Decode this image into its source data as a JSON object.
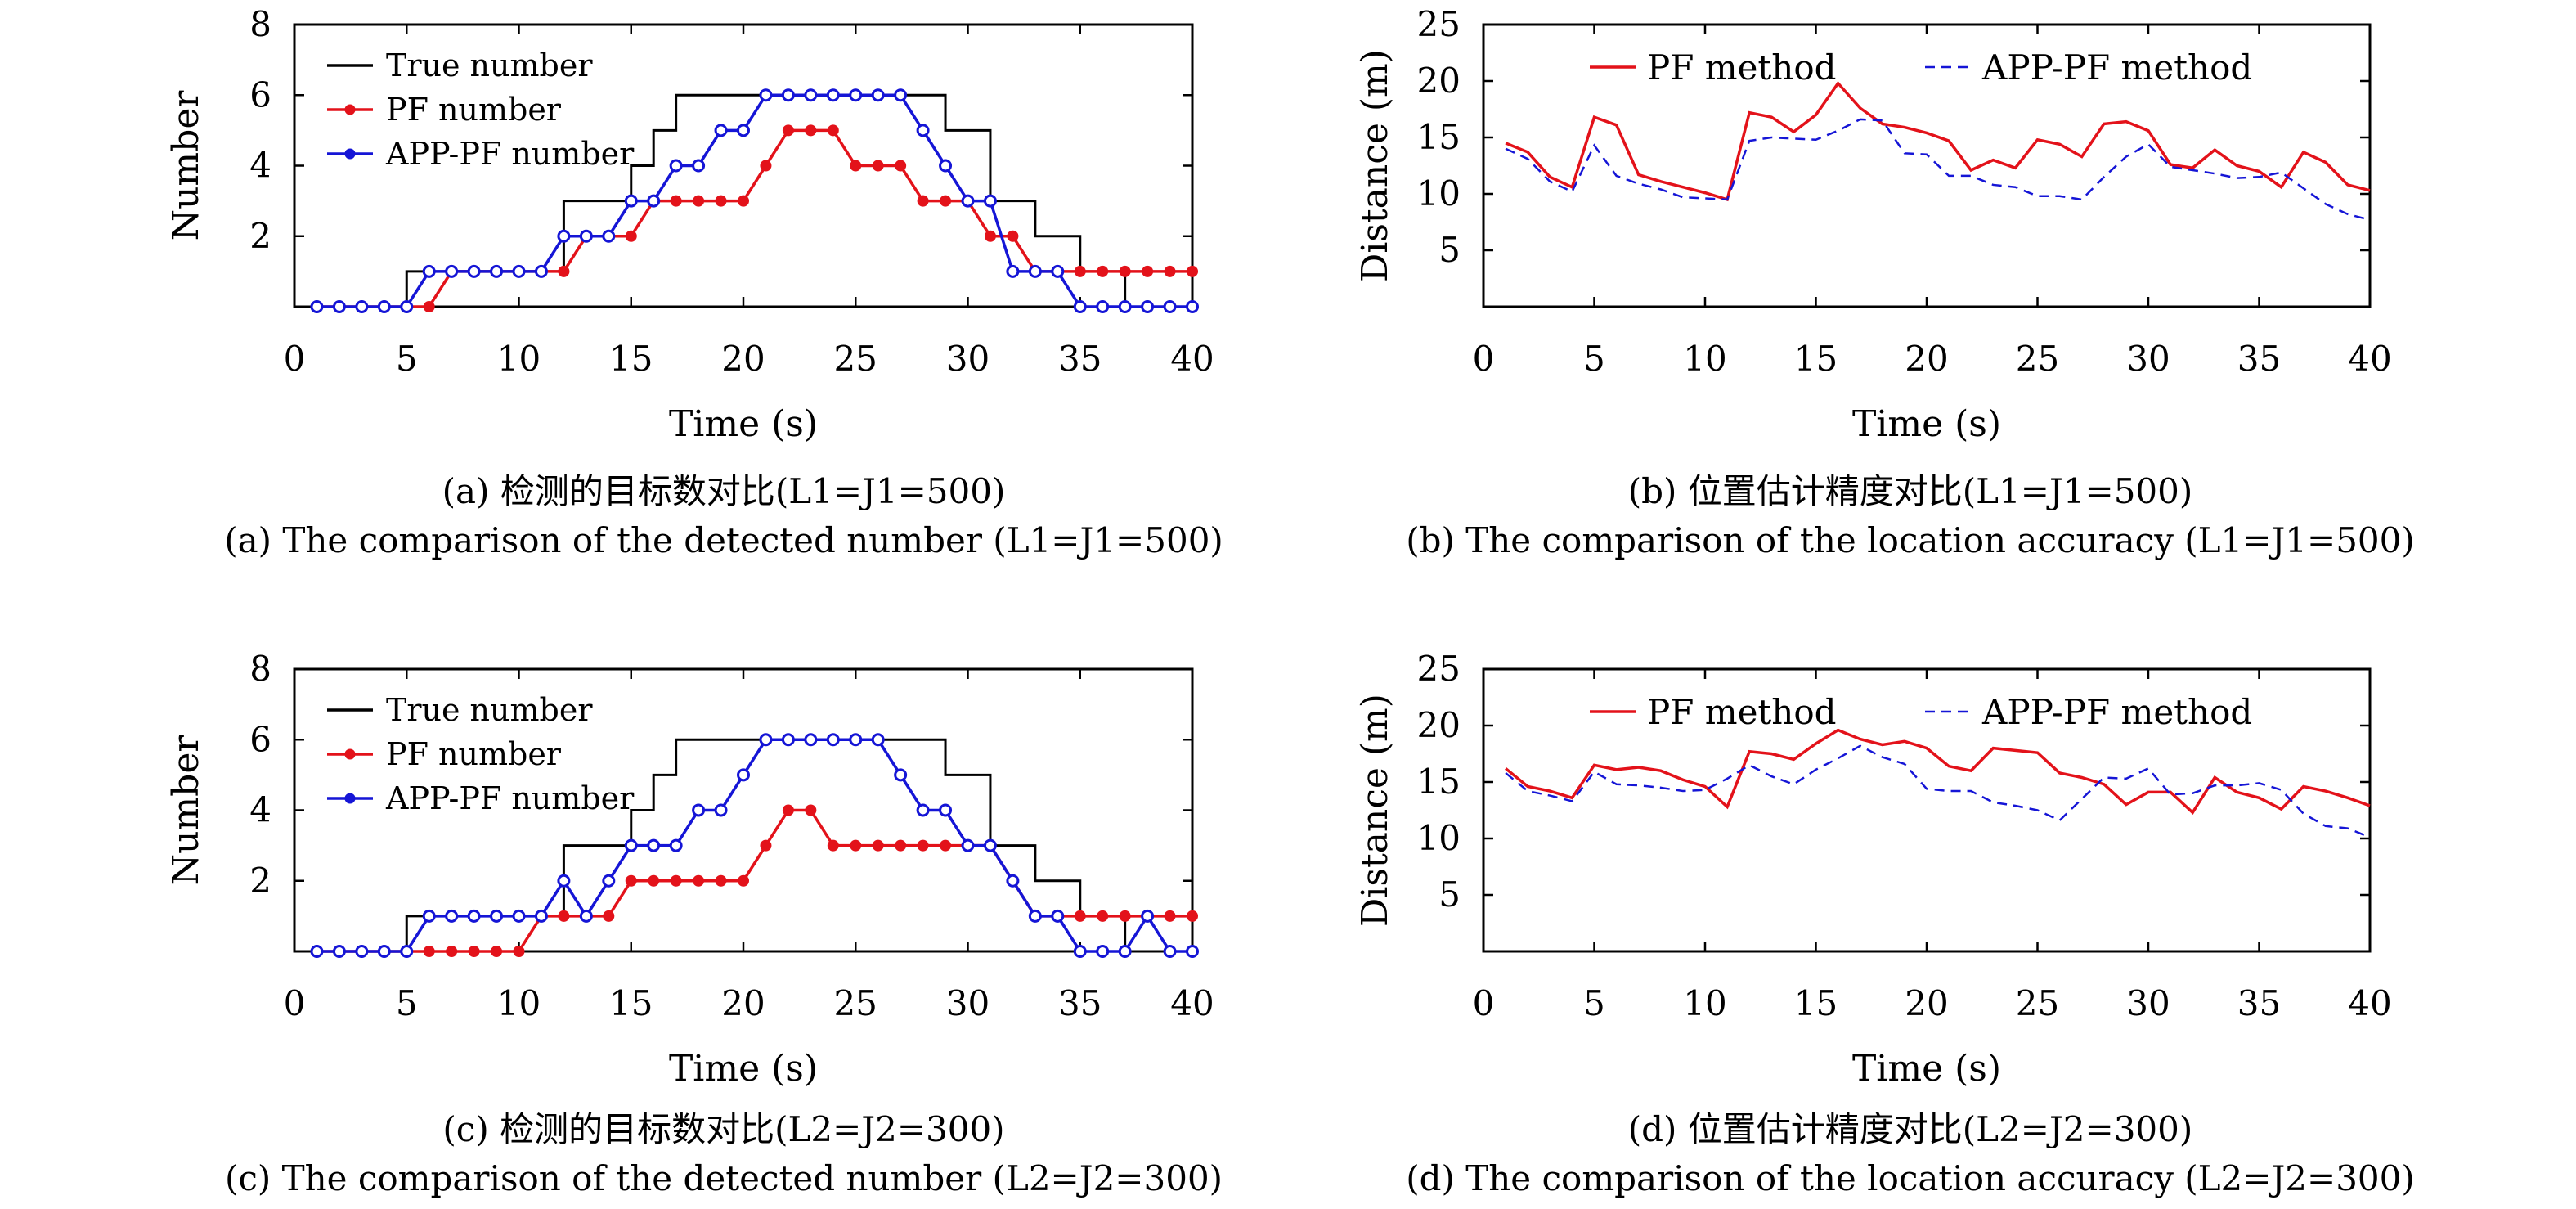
{
  "colors": {
    "true": "#000000",
    "pf": "#e3121a",
    "app": "#1515d6"
  },
  "chart_data": [
    {
      "type": "line",
      "panel": "a",
      "caption_cn": "(a) 检测的目标数对比(L1=J1=500)",
      "caption_en": "(a) The comparison of the detected number (L1=J1=500)",
      "xlabel": "Time (s)",
      "ylabel": "Number",
      "xlim": [
        0,
        40
      ],
      "ylim": [
        0,
        8
      ],
      "xticks": [
        0,
        5,
        10,
        15,
        20,
        25,
        30,
        35,
        40
      ],
      "yticks": [
        2,
        4,
        6,
        8
      ],
      "legend_position": "top-left",
      "x": [
        1,
        2,
        3,
        4,
        5,
        6,
        7,
        8,
        9,
        10,
        11,
        12,
        13,
        14,
        15,
        16,
        17,
        18,
        19,
        20,
        21,
        22,
        23,
        24,
        25,
        26,
        27,
        28,
        29,
        30,
        31,
        32,
        33,
        34,
        35,
        36,
        37,
        38,
        39,
        40
      ],
      "series": [
        {
          "name": "True number",
          "style": "step",
          "color": "#000000",
          "values": [
            0,
            0,
            0,
            0,
            1,
            1,
            1,
            1,
            1,
            1,
            1,
            3,
            3,
            3,
            4,
            5,
            6,
            6,
            6,
            6,
            6,
            6,
            6,
            6,
            6,
            6,
            6,
            6,
            5,
            5,
            3,
            3,
            2,
            2,
            1,
            1,
            0,
            0,
            0,
            0
          ]
        },
        {
          "name": "PF number",
          "style": "marker",
          "color": "#e3121a",
          "values": [
            0,
            0,
            0,
            0,
            0,
            0,
            1,
            1,
            1,
            1,
            1,
            1,
            2,
            2,
            2,
            3,
            3,
            3,
            3,
            3,
            4,
            5,
            5,
            5,
            4,
            4,
            4,
            3,
            3,
            3,
            2,
            2,
            1,
            1,
            1,
            1,
            1,
            1,
            1,
            1
          ]
        },
        {
          "name": "APP-PF number",
          "style": "marker",
          "color": "#1515d6",
          "values": [
            0,
            0,
            0,
            0,
            0,
            1,
            1,
            1,
            1,
            1,
            1,
            2,
            2,
            2,
            3,
            3,
            4,
            4,
            5,
            5,
            6,
            6,
            6,
            6,
            6,
            6,
            6,
            5,
            4,
            3,
            3,
            1,
            1,
            1,
            0,
            0,
            0,
            0,
            0,
            0
          ]
        }
      ]
    },
    {
      "type": "line",
      "panel": "b",
      "caption_cn": "(b) 位置估计精度对比(L1=J1=500)",
      "caption_en": "(b) The comparison of the location accuracy (L1=J1=500)",
      "xlabel": "Time (s)",
      "ylabel": "Distance (m)",
      "xlim": [
        0,
        40
      ],
      "ylim": [
        0,
        25
      ],
      "xticks": [
        0,
        5,
        10,
        15,
        20,
        25,
        30,
        35,
        40
      ],
      "yticks": [
        5,
        10,
        15,
        20,
        25
      ],
      "legend_position": "top",
      "x": [
        1,
        2,
        3,
        4,
        5,
        6,
        7,
        8,
        9,
        10,
        11,
        12,
        13,
        14,
        15,
        16,
        17,
        18,
        19,
        20,
        21,
        22,
        23,
        24,
        25,
        26,
        27,
        28,
        29,
        30,
        31,
        32,
        33,
        34,
        35,
        36,
        37,
        38,
        39,
        40
      ],
      "series": [
        {
          "name": "PF method",
          "style": "solid",
          "color": "#e3121a",
          "values": [
            14.5,
            13.7,
            11.5,
            10.6,
            16.8,
            16.1,
            11.7,
            11.1,
            10.6,
            10.1,
            9.5,
            17.2,
            16.8,
            15.5,
            17.0,
            19.8,
            17.6,
            16.2,
            15.9,
            15.4,
            14.7,
            12.1,
            13.0,
            12.3,
            14.8,
            14.4,
            13.3,
            16.2,
            16.4,
            15.6,
            12.6,
            12.3,
            13.9,
            12.5,
            12.0,
            10.6,
            13.7,
            12.8,
            10.8,
            10.3
          ]
        },
        {
          "name": "APP-PF method",
          "style": "dashed",
          "color": "#1515d6",
          "values": [
            14.0,
            13.1,
            11.1,
            10.2,
            14.3,
            11.6,
            10.9,
            10.4,
            9.7,
            9.6,
            9.5,
            14.7,
            15.0,
            14.9,
            14.8,
            15.6,
            16.6,
            16.5,
            13.6,
            13.5,
            11.6,
            11.6,
            10.8,
            10.6,
            9.8,
            9.8,
            9.5,
            11.5,
            13.3,
            14.4,
            12.4,
            12.1,
            11.8,
            11.4,
            11.5,
            11.9,
            10.5,
            9.1,
            8.2,
            7.7
          ]
        }
      ]
    },
    {
      "type": "line",
      "panel": "c",
      "caption_cn": "(c) 检测的目标数对比(L2=J2=300)",
      "caption_en": "(c) The comparison of the detected number (L2=J2=300)",
      "xlabel": "Time (s)",
      "ylabel": "Number",
      "xlim": [
        0,
        40
      ],
      "ylim": [
        0,
        8
      ],
      "xticks": [
        0,
        5,
        10,
        15,
        20,
        25,
        30,
        35,
        40
      ],
      "yticks": [
        2,
        4,
        6,
        8
      ],
      "legend_position": "top-left",
      "x": [
        1,
        2,
        3,
        4,
        5,
        6,
        7,
        8,
        9,
        10,
        11,
        12,
        13,
        14,
        15,
        16,
        17,
        18,
        19,
        20,
        21,
        22,
        23,
        24,
        25,
        26,
        27,
        28,
        29,
        30,
        31,
        32,
        33,
        34,
        35,
        36,
        37,
        38,
        39,
        40
      ],
      "series": [
        {
          "name": "True number",
          "style": "step",
          "color": "#000000",
          "values": [
            0,
            0,
            0,
            0,
            1,
            1,
            1,
            1,
            1,
            1,
            1,
            3,
            3,
            3,
            4,
            5,
            6,
            6,
            6,
            6,
            6,
            6,
            6,
            6,
            6,
            6,
            6,
            6,
            5,
            5,
            3,
            3,
            2,
            2,
            1,
            1,
            0,
            0,
            0,
            0
          ]
        },
        {
          "name": "PF number",
          "style": "marker",
          "color": "#e3121a",
          "values": [
            0,
            0,
            0,
            0,
            0,
            0,
            0,
            0,
            0,
            0,
            1,
            1,
            1,
            1,
            2,
            2,
            2,
            2,
            2,
            2,
            3,
            4,
            4,
            3,
            3,
            3,
            3,
            3,
            3,
            3,
            3,
            2,
            1,
            1,
            1,
            1,
            1,
            1,
            1,
            1
          ]
        },
        {
          "name": "APP-PF number",
          "style": "marker",
          "color": "#1515d6",
          "values": [
            0,
            0,
            0,
            0,
            0,
            1,
            1,
            1,
            1,
            1,
            1,
            2,
            1,
            2,
            3,
            3,
            3,
            4,
            4,
            5,
            6,
            6,
            6,
            6,
            6,
            6,
            5,
            4,
            4,
            3,
            3,
            2,
            1,
            1,
            0,
            0,
            0,
            1,
            0,
            0
          ]
        }
      ]
    },
    {
      "type": "line",
      "panel": "d",
      "caption_cn": "(d) 位置估计精度对比(L2=J2=300)",
      "caption_en": "(d) The comparison of the location accuracy (L2=J2=300)",
      "xlabel": "Time (s)",
      "ylabel": "Distance (m)",
      "xlim": [
        0,
        40
      ],
      "ylim": [
        0,
        25
      ],
      "xticks": [
        0,
        5,
        10,
        15,
        20,
        25,
        30,
        35,
        40
      ],
      "yticks": [
        5,
        10,
        15,
        20,
        25
      ],
      "legend_position": "top",
      "x": [
        1,
        2,
        3,
        4,
        5,
        6,
        7,
        8,
        9,
        10,
        11,
        12,
        13,
        14,
        15,
        16,
        17,
        18,
        19,
        20,
        21,
        22,
        23,
        24,
        25,
        26,
        27,
        28,
        29,
        30,
        31,
        32,
        33,
        34,
        35,
        36,
        37,
        38,
        39,
        40
      ],
      "series": [
        {
          "name": "PF method",
          "style": "solid",
          "color": "#e3121a",
          "values": [
            16.2,
            14.6,
            14.2,
            13.6,
            16.5,
            16.1,
            16.3,
            16.0,
            15.2,
            14.6,
            12.8,
            17.7,
            17.5,
            17.0,
            18.4,
            19.6,
            18.8,
            18.3,
            18.6,
            18.0,
            16.4,
            16.0,
            18.0,
            17.8,
            17.6,
            15.8,
            15.4,
            14.8,
            13.0,
            14.1,
            14.1,
            12.3,
            15.4,
            14.1,
            13.6,
            12.6,
            14.6,
            14.2,
            13.6,
            12.9
          ]
        },
        {
          "name": "APP-PF method",
          "style": "dashed",
          "color": "#1515d6",
          "values": [
            15.8,
            14.2,
            13.8,
            13.3,
            15.9,
            14.8,
            14.7,
            14.5,
            14.2,
            14.3,
            15.3,
            16.5,
            15.5,
            14.8,
            16.1,
            17.1,
            18.2,
            17.2,
            16.6,
            14.4,
            14.2,
            14.2,
            13.2,
            12.9,
            12.5,
            11.6,
            13.5,
            15.4,
            15.3,
            16.2,
            13.9,
            14.0,
            14.7,
            14.7,
            14.9,
            14.3,
            12.2,
            11.1,
            10.9,
            10.1
          ]
        }
      ]
    }
  ]
}
